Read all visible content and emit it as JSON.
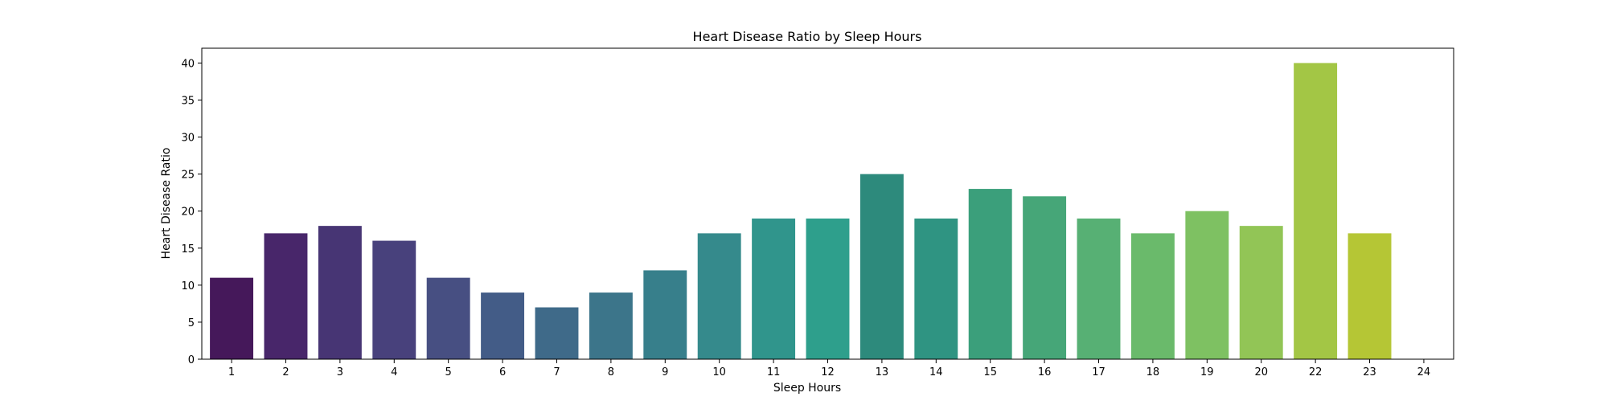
{
  "chart_data": {
    "type": "bar",
    "title": "Heart Disease Ratio by Sleep Hours",
    "xlabel": "Sleep Hours",
    "ylabel": "Heart Disease Ratio",
    "categories": [
      "1",
      "2",
      "3",
      "4",
      "5",
      "6",
      "7",
      "8",
      "9",
      "10",
      "11",
      "12",
      "13",
      "14",
      "15",
      "16",
      "17",
      "18",
      "19",
      "20",
      "22",
      "23",
      "24"
    ],
    "values": [
      11,
      17,
      18,
      16,
      11,
      9,
      7,
      9,
      12,
      17,
      19,
      19,
      25,
      19,
      23,
      22,
      19,
      17,
      20,
      18,
      40,
      17,
      0
    ],
    "colors": [
      "#45185a",
      "#48266a",
      "#473574",
      "#48417c",
      "#474f82",
      "#435c87",
      "#3f6a89",
      "#3c758a",
      "#377f8b",
      "#358a8c",
      "#30958c",
      "#2e9f8c",
      "#2d8a7c",
      "#2f9482",
      "#3b9f7b",
      "#46a678",
      "#57b074",
      "#6aba6b",
      "#7ec162",
      "#92c556",
      "#a3c645",
      "#b5c635",
      "#c9cd2a"
    ],
    "ylim": [
      0,
      42
    ],
    "yticks": [
      0,
      5,
      10,
      15,
      20,
      25,
      30,
      35,
      40
    ],
    "grid": false
  }
}
